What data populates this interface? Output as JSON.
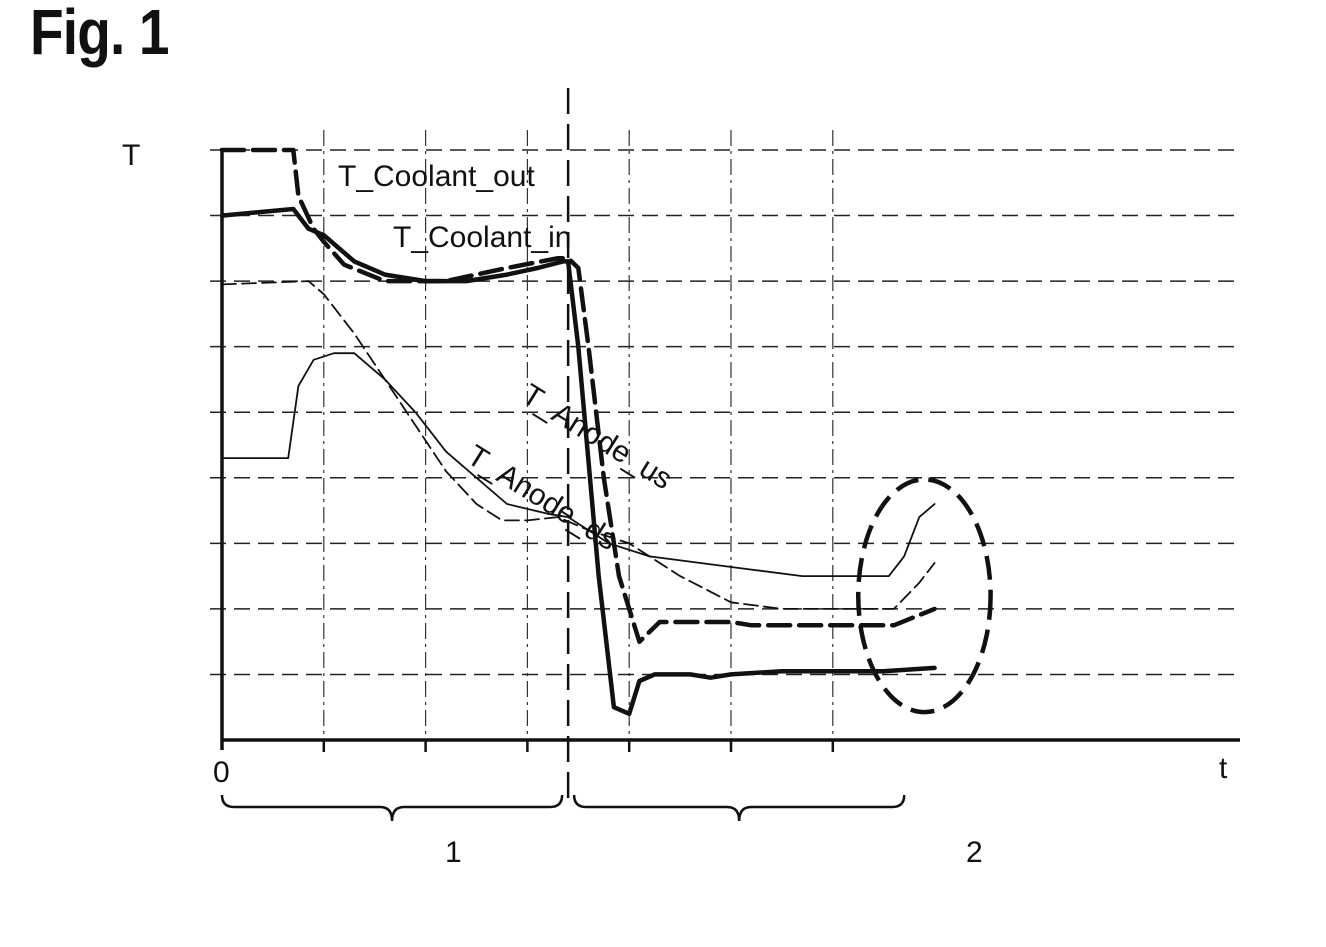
{
  "figure_label": "Fig. 1",
  "chart_data": {
    "type": "line",
    "ylabel": "T",
    "xlabel": "t",
    "x_origin_label": "0",
    "xlim": [
      0,
      10
    ],
    "ylim": [
      0,
      9
    ],
    "grid": true,
    "phase_boundary_x": 3.4,
    "phases": [
      {
        "label": "1",
        "x_start": 0,
        "x_end": 3.4
      },
      {
        "label": "2",
        "x_start": 3.4,
        "x_end": 6.8
      }
    ],
    "highlight_region": {
      "x_center": 6.9,
      "y_center": 2.2,
      "x_radius": 0.65,
      "y_radius": 3.55
    },
    "series": [
      {
        "name": "T_Coolant_out",
        "style": "heavy-dashed",
        "x": [
          0,
          0.7,
          0.75,
          0.9,
          1.0,
          1.2,
          1.6,
          2.2,
          2.8,
          3.3,
          3.4,
          3.5,
          3.6,
          3.75,
          3.9,
          4.1,
          4.3,
          5.0,
          5.2,
          6.0,
          6.6,
          7.0
        ],
        "y": [
          9.0,
          9.0,
          8.3,
          7.8,
          7.6,
          7.25,
          7.0,
          7.0,
          7.2,
          7.35,
          7.35,
          7.2,
          6.0,
          4.0,
          2.5,
          1.5,
          1.8,
          1.8,
          1.75,
          1.75,
          1.75,
          2.0
        ]
      },
      {
        "name": "T_Coolant_in",
        "style": "heavy-solid",
        "x": [
          0,
          0.7,
          0.85,
          1.0,
          1.3,
          1.6,
          2.0,
          2.4,
          2.8,
          3.1,
          3.35,
          3.4,
          3.5,
          3.7,
          3.85,
          4.0,
          4.1,
          4.25,
          4.6,
          4.8,
          5.0,
          5.5,
          6.0,
          6.5,
          7.0
        ],
        "y": [
          8.0,
          8.1,
          7.8,
          7.7,
          7.3,
          7.1,
          7.0,
          7.0,
          7.1,
          7.2,
          7.3,
          7.3,
          6.0,
          2.5,
          0.5,
          0.4,
          0.9,
          1.0,
          1.0,
          0.95,
          1.0,
          1.05,
          1.05,
          1.05,
          1.1
        ]
      },
      {
        "name": "T_Anode_us",
        "style": "thin-solid",
        "x": [
          0,
          0.65,
          0.75,
          0.9,
          1.1,
          1.3,
          1.6,
          1.9,
          2.2,
          2.5,
          2.8,
          3.2,
          3.4,
          3.8,
          4.2,
          4.7,
          5.2,
          5.7,
          6.2,
          6.4,
          6.55,
          6.7,
          6.85,
          7.0
        ],
        "y": [
          4.3,
          4.3,
          5.4,
          5.8,
          5.9,
          5.9,
          5.5,
          5.0,
          4.4,
          4.0,
          3.6,
          3.45,
          3.4,
          3.0,
          2.8,
          2.7,
          2.6,
          2.5,
          2.5,
          2.5,
          2.5,
          2.8,
          3.4,
          3.6
        ]
      },
      {
        "name": "T_Anode_ds",
        "style": "thin-dashed",
        "x": [
          0,
          0.85,
          1.0,
          1.3,
          1.6,
          1.9,
          2.2,
          2.5,
          2.75,
          3.0,
          3.3,
          3.6,
          4.0,
          4.5,
          5.0,
          5.5,
          6.0,
          6.6,
          6.85,
          7.0
        ],
        "y": [
          6.95,
          7.0,
          6.8,
          6.2,
          5.5,
          4.8,
          4.1,
          3.6,
          3.35,
          3.35,
          3.4,
          3.2,
          3.0,
          2.5,
          2.1,
          2.0,
          2.0,
          2.0,
          2.4,
          2.7
        ]
      }
    ],
    "series_labels": [
      {
        "text": "T_Coolant_out"
      },
      {
        "text": "T_Coolant_in"
      },
      {
        "text": "T_Anode_us"
      },
      {
        "text": "T_Anode_ds"
      }
    ]
  }
}
